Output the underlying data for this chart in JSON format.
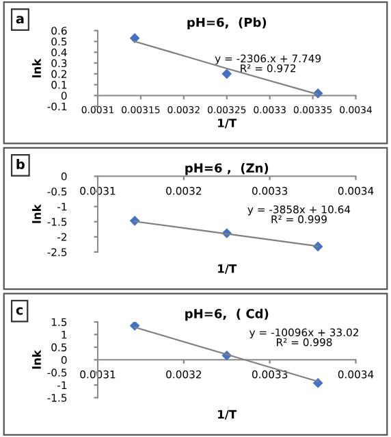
{
  "chart_data": [
    {
      "type": "scatter",
      "title": "pH=6,  (Pb)",
      "xlabel": "1/T",
      "ylabel": "lnk",
      "x": [
        0.003143,
        0.00325,
        0.003356
      ],
      "series": [
        {
          "color": "#4472c4",
          "marker": "diamond",
          "values": [
            0.53,
            0.2,
            0.02
          ]
        },
        {
          "type": "line",
          "color": "#808080",
          "values": [
            0.5,
            0.25,
            0.01
          ]
        }
      ],
      "xlim": [
        0.0031,
        0.0034
      ],
      "ylim": [
        -0.1,
        0.6
      ],
      "xticks": [
        0.0031,
        0.00315,
        0.0032,
        0.00325,
        0.0033,
        0.00335,
        0.0034
      ],
      "yticks": [
        -0.1,
        0,
        0.1,
        0.2,
        0.3,
        0.4,
        0.5,
        0.6
      ],
      "grid": false,
      "annotations": [
        "a",
        "y = -2306.x + 7.749",
        "R² = 0.972"
      ]
    },
    {
      "type": "scatter",
      "title": "pH=6 ,  (Zn)",
      "xlabel": "1/T",
      "ylabel": "lnk",
      "x": [
        0.003143,
        0.00325,
        0.003356
      ],
      "series": [
        {
          "color": "#4472c4",
          "marker": "diamond",
          "values": [
            -1.47,
            -1.88,
            -2.32
          ]
        },
        {
          "type": "line",
          "color": "#808080",
          "values": [
            -1.49,
            -1.9,
            -2.31
          ]
        }
      ],
      "xlim": [
        0.0031,
        0.0034
      ],
      "ylim": [
        -2.5,
        0
      ],
      "xticks": [
        0.0031,
        0.0032,
        0.0033,
        0.0034
      ],
      "yticks": [
        -2.5,
        -2,
        -1.5,
        -1,
        -0.5,
        0
      ],
      "grid": false,
      "annotations": [
        "b",
        "y = -3858x + 10.64",
        "R² = 0.999"
      ]
    },
    {
      "type": "scatter",
      "title": "pH=6,  ( Cd)",
      "xlabel": "1/T",
      "ylabel": "lnk",
      "x": [
        0.003143,
        0.00325,
        0.003356
      ],
      "series": [
        {
          "color": "#4472c4",
          "marker": "diamond",
          "values": [
            1.35,
            0.17,
            -0.92
          ]
        },
        {
          "type": "line",
          "color": "#808080",
          "values": [
            1.29,
            0.21,
            -0.86
          ]
        }
      ],
      "xlim": [
        0.0031,
        0.0034
      ],
      "ylim": [
        -1.5,
        1.5
      ],
      "xticks": [
        0.0031,
        0.0032,
        0.0033,
        0.0034
      ],
      "yticks": [
        -1.5,
        -1,
        -0.5,
        0,
        0.5,
        1,
        1.5
      ],
      "grid": false,
      "annotations": [
        "c",
        "y = -10096x + 33.02",
        "R² = 0.998"
      ]
    }
  ]
}
